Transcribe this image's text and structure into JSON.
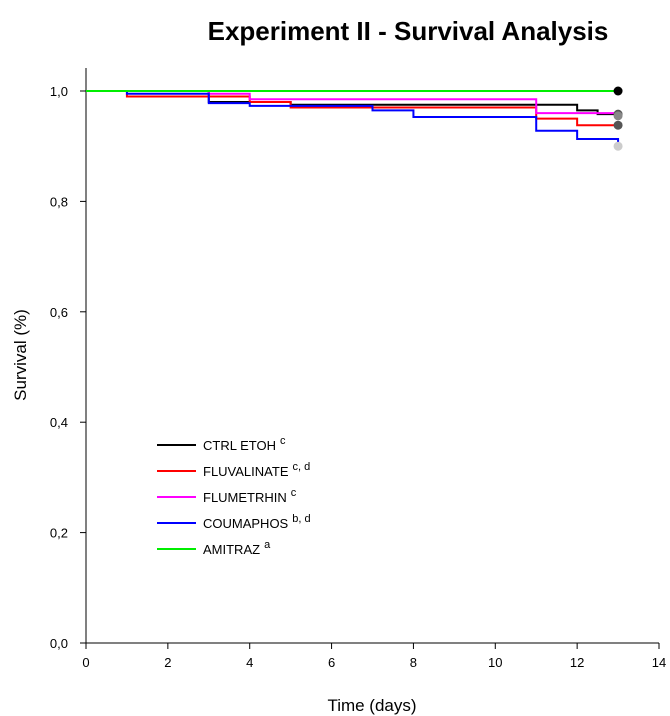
{
  "chart_data": {
    "type": "line",
    "title": "Experiment II - Survival Analysis",
    "xlabel": "Time (days)",
    "ylabel": "Survival (%)",
    "xlim": [
      0,
      14
    ],
    "ylim": [
      0,
      1.0
    ],
    "x_ticks": [
      "0",
      "2",
      "4",
      "6",
      "8",
      "10",
      "12",
      "14"
    ],
    "y_ticks": [
      "0,0",
      "0,2",
      "0,4",
      "0,6",
      "0,8",
      "1,0"
    ],
    "grid": false,
    "legend_position": "bottom-left",
    "step": true,
    "series": [
      {
        "name": "CTRL ETOH",
        "superscript": "c",
        "color": "#000000",
        "end_marker_color": "#555555",
        "points": [
          [
            0,
            1.0
          ],
          [
            1,
            1.0
          ],
          [
            3,
            0.98
          ],
          [
            5,
            0.975
          ],
          [
            12,
            0.965
          ],
          [
            12.5,
            0.958
          ],
          [
            13,
            0.958
          ]
        ]
      },
      {
        "name": "FLUVALINATE",
        "superscript": "c, d",
        "color": "#ff0000",
        "end_marker_color": "#555555",
        "points": [
          [
            0,
            1.0
          ],
          [
            1,
            0.99
          ],
          [
            4,
            0.98
          ],
          [
            5,
            0.97
          ],
          [
            11,
            0.95
          ],
          [
            12,
            0.938
          ],
          [
            13,
            0.938
          ]
        ]
      },
      {
        "name": "FLUMETRHIN",
        "superscript": "c",
        "color": "#ff00ff",
        "end_marker_color": "#888888",
        "points": [
          [
            0,
            1.0
          ],
          [
            1,
            1.0
          ],
          [
            3,
            0.995
          ],
          [
            4,
            0.985
          ],
          [
            11,
            0.96
          ],
          [
            13,
            0.955
          ]
        ]
      },
      {
        "name": "COUMAPHOS",
        "superscript": "b, d",
        "color": "#0000ff",
        "end_marker_color": "#cccccc",
        "points": [
          [
            0,
            1.0
          ],
          [
            1,
            0.995
          ],
          [
            3,
            0.978
          ],
          [
            4,
            0.973
          ],
          [
            7,
            0.965
          ],
          [
            8,
            0.953
          ],
          [
            11,
            0.928
          ],
          [
            12,
            0.913
          ],
          [
            13,
            0.9
          ]
        ]
      },
      {
        "name": "AMITRAZ",
        "superscript": "a",
        "color": "#00ee00",
        "end_marker_color": "#000000",
        "points": [
          [
            0,
            1.0
          ],
          [
            13,
            1.0
          ]
        ]
      }
    ]
  }
}
